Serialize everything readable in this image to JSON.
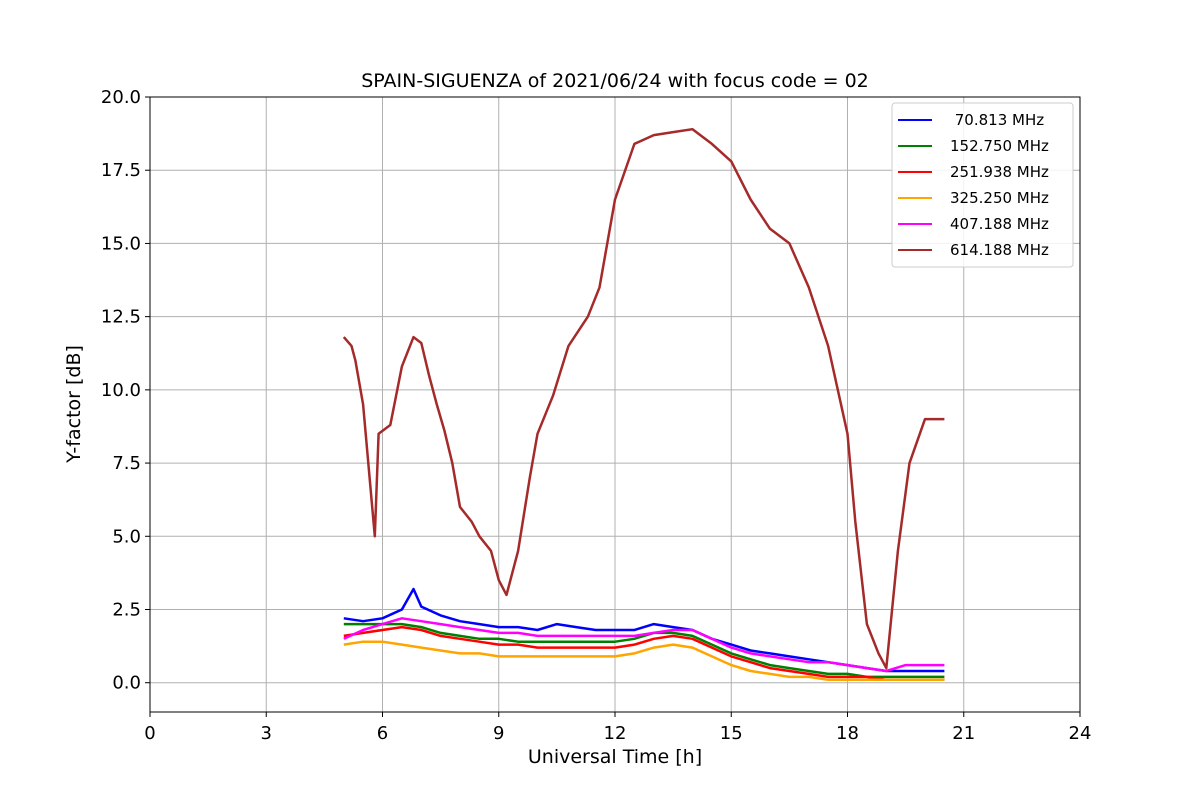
{
  "chart_data": {
    "type": "line",
    "title": "SPAIN-SIGUENZA of 2021/06/24 with focus code = 02",
    "xlabel": "Universal Time [h]",
    "ylabel": "Y-factor [dB]",
    "xlim": [
      0,
      24
    ],
    "ylim": [
      -1.0,
      20.0
    ],
    "xticks": [
      "0",
      "3",
      "6",
      "9",
      "12",
      "15",
      "18",
      "21",
      "24"
    ],
    "yticks": [
      "0.0",
      "2.5",
      "5.0",
      "7.5",
      "10.0",
      "12.5",
      "15.0",
      "17.5",
      "20.0"
    ],
    "grid": true,
    "legend_position": "top-right",
    "series": [
      {
        "name": " 70.813 MHz",
        "color": "#0000ff",
        "x": [
          5.0,
          5.5,
          6.0,
          6.5,
          6.8,
          7.0,
          7.5,
          8.0,
          8.5,
          9.0,
          9.5,
          10.0,
          10.5,
          11.0,
          11.5,
          12.0,
          12.5,
          13.0,
          13.5,
          14.0,
          14.5,
          15.0,
          15.5,
          16.0,
          16.5,
          17.0,
          17.5,
          18.0,
          18.5,
          19.0,
          19.5,
          20.0,
          20.5
        ],
        "y": [
          2.2,
          2.1,
          2.2,
          2.5,
          3.2,
          2.6,
          2.3,
          2.1,
          2.0,
          1.9,
          1.9,
          1.8,
          2.0,
          1.9,
          1.8,
          1.8,
          1.8,
          2.0,
          1.9,
          1.8,
          1.5,
          1.3,
          1.1,
          1.0,
          0.9,
          0.8,
          0.7,
          0.6,
          0.5,
          0.4,
          0.4,
          0.4,
          0.4
        ]
      },
      {
        "name": "152.750 MHz",
        "color": "#008000",
        "x": [
          5.0,
          5.5,
          6.0,
          6.5,
          7.0,
          7.5,
          8.0,
          8.5,
          9.0,
          9.5,
          10.0,
          10.5,
          11.0,
          11.5,
          12.0,
          12.5,
          13.0,
          13.5,
          14.0,
          14.5,
          15.0,
          15.5,
          16.0,
          16.5,
          17.0,
          17.5,
          18.0,
          18.5,
          19.0,
          19.5,
          20.0,
          20.5
        ],
        "y": [
          2.0,
          2.0,
          2.0,
          2.0,
          1.9,
          1.7,
          1.6,
          1.5,
          1.5,
          1.4,
          1.4,
          1.4,
          1.4,
          1.4,
          1.4,
          1.5,
          1.7,
          1.7,
          1.6,
          1.3,
          1.0,
          0.8,
          0.6,
          0.5,
          0.4,
          0.3,
          0.3,
          0.2,
          0.2,
          0.2,
          0.2,
          0.2
        ]
      },
      {
        "name": "251.938 MHz",
        "color": "#ff0000",
        "x": [
          5.0,
          5.5,
          6.0,
          6.5,
          7.0,
          7.5,
          8.0,
          8.5,
          9.0,
          9.5,
          10.0,
          10.5,
          11.0,
          11.5,
          12.0,
          12.5,
          13.0,
          13.5,
          14.0,
          14.5,
          15.0,
          15.5,
          16.0,
          16.5,
          17.0,
          17.5,
          18.0,
          18.5,
          19.0,
          19.5,
          20.0,
          20.5
        ],
        "y": [
          1.6,
          1.7,
          1.8,
          1.9,
          1.8,
          1.6,
          1.5,
          1.4,
          1.3,
          1.3,
          1.2,
          1.2,
          1.2,
          1.2,
          1.2,
          1.3,
          1.5,
          1.6,
          1.5,
          1.2,
          0.9,
          0.7,
          0.5,
          0.4,
          0.3,
          0.2,
          0.2,
          0.2,
          0.1,
          0.1,
          0.1,
          0.1
        ]
      },
      {
        "name": "325.250 MHz",
        "color": "#ffa500",
        "x": [
          5.0,
          5.5,
          6.0,
          6.5,
          7.0,
          7.5,
          8.0,
          8.5,
          9.0,
          9.5,
          10.0,
          10.5,
          11.0,
          11.5,
          12.0,
          12.5,
          13.0,
          13.5,
          14.0,
          14.5,
          15.0,
          15.5,
          16.0,
          16.5,
          17.0,
          17.5,
          18.0,
          18.5,
          19.0,
          19.5,
          20.0,
          20.5
        ],
        "y": [
          1.3,
          1.4,
          1.4,
          1.3,
          1.2,
          1.1,
          1.0,
          1.0,
          0.9,
          0.9,
          0.9,
          0.9,
          0.9,
          0.9,
          0.9,
          1.0,
          1.2,
          1.3,
          1.2,
          0.9,
          0.6,
          0.4,
          0.3,
          0.2,
          0.2,
          0.1,
          0.1,
          0.1,
          0.1,
          0.1,
          0.1,
          0.1
        ]
      },
      {
        "name": "407.188 MHz",
        "color": "#ff00ff",
        "x": [
          5.0,
          5.5,
          6.0,
          6.5,
          7.0,
          7.5,
          8.0,
          8.5,
          9.0,
          9.5,
          10.0,
          10.5,
          11.0,
          11.5,
          12.0,
          12.5,
          13.0,
          13.5,
          14.0,
          14.5,
          15.0,
          15.5,
          16.0,
          16.5,
          17.0,
          17.5,
          18.0,
          18.5,
          19.0,
          19.5,
          20.0,
          20.5
        ],
        "y": [
          1.5,
          1.8,
          2.0,
          2.2,
          2.1,
          2.0,
          1.9,
          1.8,
          1.7,
          1.7,
          1.6,
          1.6,
          1.6,
          1.6,
          1.6,
          1.6,
          1.7,
          1.8,
          1.8,
          1.5,
          1.2,
          1.0,
          0.9,
          0.8,
          0.7,
          0.7,
          0.6,
          0.5,
          0.4,
          0.6,
          0.6,
          0.6
        ]
      },
      {
        "name": "614.188 MHz",
        "color": "#a52a2a",
        "x": [
          5.0,
          5.2,
          5.3,
          5.5,
          5.8,
          5.9,
          6.2,
          6.5,
          6.8,
          7.0,
          7.2,
          7.4,
          7.6,
          7.8,
          8.0,
          8.3,
          8.5,
          8.8,
          9.0,
          9.2,
          9.5,
          9.8,
          10.0,
          10.4,
          10.8,
          11.3,
          11.6,
          12.0,
          12.5,
          13.0,
          13.5,
          14.0,
          14.5,
          15.0,
          15.5,
          16.0,
          16.5,
          17.0,
          17.5,
          18.0,
          18.2,
          18.5,
          18.8,
          19.0,
          19.3,
          19.6,
          20.0,
          20.5
        ],
        "y": [
          11.8,
          11.5,
          11.0,
          9.5,
          5.0,
          8.5,
          8.8,
          10.8,
          11.8,
          11.6,
          10.5,
          9.5,
          8.6,
          7.5,
          6.0,
          5.5,
          5.0,
          4.5,
          3.5,
          3.0,
          4.5,
          7.0,
          8.5,
          9.8,
          11.5,
          12.5,
          13.5,
          16.5,
          18.4,
          18.7,
          18.8,
          18.9,
          18.4,
          17.8,
          16.5,
          15.5,
          15.0,
          13.5,
          11.5,
          8.5,
          5.5,
          2.0,
          1.0,
          0.5,
          4.5,
          7.5,
          9.0,
          9.0
        ]
      }
    ]
  }
}
